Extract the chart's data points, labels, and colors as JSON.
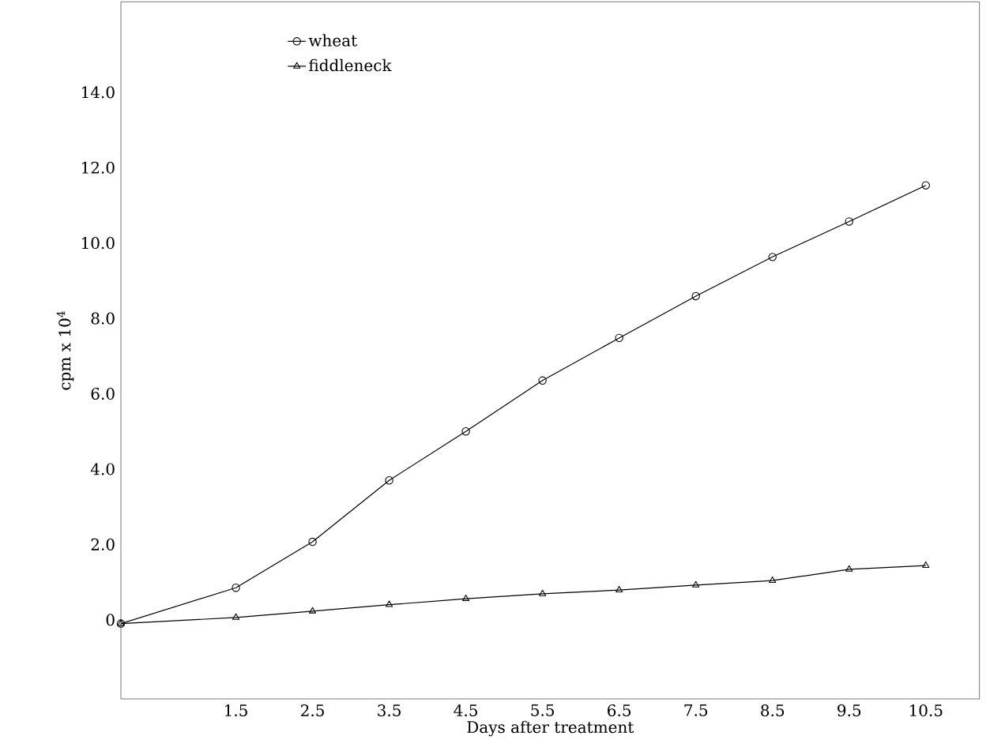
{
  "chart_data": {
    "type": "line",
    "xlabel": "Days after treatment",
    "ylabel": "cpm x 10$^{4}$",
    "x": [
      0,
      1.5,
      2.5,
      3.5,
      4.5,
      5.5,
      6.5,
      7.5,
      8.5,
      9.5,
      10.5
    ],
    "series": [
      {
        "name": "wheat",
        "color": "#000000",
        "marker": "circle",
        "values": [
          -0.1,
          0.85,
          2.07,
          3.7,
          5.0,
          6.35,
          7.48,
          8.59,
          9.63,
          10.57,
          11.53
        ]
      },
      {
        "name": "fiddleneck",
        "color": "#000000",
        "marker": "triangle",
        "values": [
          -0.1,
          0.06,
          0.23,
          0.4,
          0.56,
          0.69,
          0.79,
          0.92,
          1.04,
          1.34,
          1.44
        ]
      }
    ],
    "xlim": [
      0,
      11.2
    ],
    "ylim": [
      -2.1,
      16.4
    ],
    "xticks": [
      1.5,
      2.5,
      3.5,
      4.5,
      5.5,
      6.5,
      7.5,
      8.5,
      9.5,
      10.5
    ],
    "yticks": [
      0,
      {
        "value": 2,
        "label": "2.0"
      },
      {
        "value": 4,
        "label": "4.0"
      },
      {
        "value": 6,
        "label": "6.0"
      },
      {
        "value": 8,
        "label": "8.0"
      },
      {
        "value": 10,
        "label": "10.0"
      },
      {
        "value": 12,
        "label": "12.0"
      },
      {
        "value": 14,
        "label": "14.0"
      }
    ],
    "grid": false,
    "legend": "top left",
    "line_style": "solid"
  }
}
